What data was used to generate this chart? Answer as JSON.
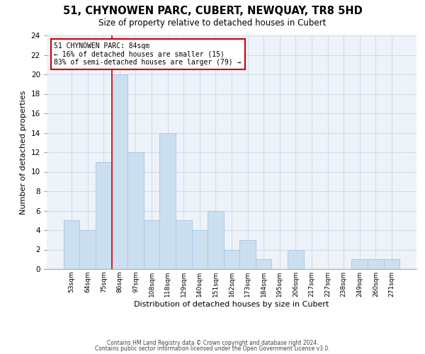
{
  "title": "51, CHYNOWEN PARC, CUBERT, NEWQUAY, TR8 5HD",
  "subtitle": "Size of property relative to detached houses in Cubert",
  "xlabel": "Distribution of detached houses by size in Cubert",
  "ylabel": "Number of detached properties",
  "bin_labels": [
    "53sqm",
    "64sqm",
    "75sqm",
    "86sqm",
    "97sqm",
    "108sqm",
    "118sqm",
    "129sqm",
    "140sqm",
    "151sqm",
    "162sqm",
    "173sqm",
    "184sqm",
    "195sqm",
    "206sqm",
    "217sqm",
    "227sqm",
    "238sqm",
    "249sqm",
    "260sqm",
    "271sqm"
  ],
  "bar_heights": [
    5,
    4,
    11,
    20,
    12,
    5,
    14,
    5,
    4,
    6,
    2,
    3,
    1,
    0,
    2,
    0,
    0,
    0,
    1,
    1,
    1
  ],
  "bar_color": "#ccdff0",
  "bar_edge_color": "#aac8e8",
  "vline_x_index": 3,
  "vline_color": "#cc0000",
  "annotation_text": "51 CHYNOWEN PARC: 84sqm\n← 16% of detached houses are smaller (15)\n83% of semi-detached houses are larger (79) →",
  "annotation_box_edge_color": "#cc0000",
  "annotation_box_face_color": "#ffffff",
  "ylim": [
    0,
    24
  ],
  "yticks": [
    0,
    2,
    4,
    6,
    8,
    10,
    12,
    14,
    16,
    18,
    20,
    22,
    24
  ],
  "footer_line1": "Contains HM Land Registry data © Crown copyright and database right 2024.",
  "footer_line2": "Contains public sector information licensed under the Open Government Licence v3.0.",
  "bg_color": "#ffffff",
  "grid_color": "#d0dcec"
}
